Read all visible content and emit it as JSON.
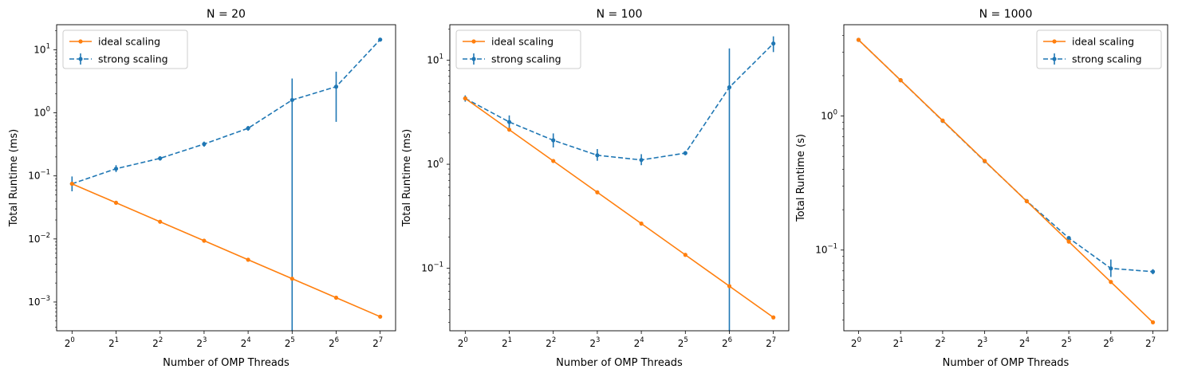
{
  "chart_data": [
    {
      "type": "line",
      "title": "N = 20",
      "xlabel": "Number of OMP Threads",
      "ylabel": "Total Runtime (ms)",
      "x": [
        1,
        2,
        4,
        8,
        16,
        32,
        64,
        128
      ],
      "xscale": "log2",
      "yscale": "log10",
      "ylim": [
        0.00035,
        25
      ],
      "legend_loc": "upper-left",
      "series": [
        {
          "name": "ideal scaling",
          "style": "solid",
          "color": "#ff7f0e",
          "values": [
            0.075,
            0.0375,
            0.01875,
            0.009375,
            0.0046875,
            0.00234375,
            0.001171875,
            0.0005859375
          ]
        },
        {
          "name": "strong scaling",
          "style": "dashed",
          "color": "#1f77b4",
          "values": [
            0.075,
            0.13,
            0.19,
            0.32,
            0.57,
            1.6,
            2.6,
            14.5
          ],
          "err_low": [
            0.057,
            0.115,
            0.175,
            0.29,
            0.52,
            0.0001,
            0.72,
            14.0
          ],
          "err_high": [
            0.098,
            0.148,
            0.205,
            0.35,
            0.62,
            3.5,
            4.5,
            15.2
          ]
        }
      ]
    },
    {
      "type": "line",
      "title": "N = 100",
      "xlabel": "Number of OMP Threads",
      "ylabel": "Total Runtime (ms)",
      "x": [
        1,
        2,
        4,
        8,
        16,
        32,
        64,
        128
      ],
      "xscale": "log2",
      "yscale": "log10",
      "ylim": [
        0.025,
        22
      ],
      "legend_loc": "upper-left",
      "series": [
        {
          "name": "ideal scaling",
          "style": "solid",
          "color": "#ff7f0e",
          "values": [
            4.3,
            2.15,
            1.075,
            0.5375,
            0.26875,
            0.134375,
            0.0671875,
            0.03359375
          ]
        },
        {
          "name": "strong scaling",
          "style": "dashed",
          "color": "#1f77b4",
          "values": [
            4.3,
            2.55,
            1.7,
            1.22,
            1.1,
            1.28,
            5.5,
            14.5
          ],
          "err_low": [
            4.0,
            2.2,
            1.45,
            1.08,
            0.98,
            1.22,
            0.001,
            12.0
          ],
          "err_high": [
            4.6,
            2.95,
            1.98,
            1.4,
            1.25,
            1.34,
            13.0,
            17.0
          ]
        }
      ]
    },
    {
      "type": "line",
      "title": "N = 1000",
      "xlabel": "Number of OMP Threads",
      "ylabel": "Total Runtime (s)",
      "x": [
        1,
        2,
        4,
        8,
        16,
        32,
        64,
        128
      ],
      "xscale": "log2",
      "yscale": "log10",
      "ylim": [
        0.025,
        4.8
      ],
      "legend_loc": "upper-right",
      "series": [
        {
          "name": "ideal scaling",
          "style": "solid",
          "color": "#ff7f0e",
          "values": [
            3.7,
            1.85,
            0.925,
            0.4625,
            0.23125,
            0.115625,
            0.0578125,
            0.02890625
          ]
        },
        {
          "name": "strong scaling",
          "style": "dashed",
          "color": "#1f77b4",
          "values": [
            3.7,
            1.85,
            0.92,
            0.46,
            0.232,
            0.123,
            0.073,
            0.069
          ],
          "err_low": [
            3.64,
            1.82,
            0.905,
            0.452,
            0.228,
            0.12,
            0.063,
            0.066
          ],
          "err_high": [
            3.76,
            1.88,
            0.935,
            0.468,
            0.236,
            0.126,
            0.085,
            0.072
          ]
        }
      ]
    }
  ]
}
